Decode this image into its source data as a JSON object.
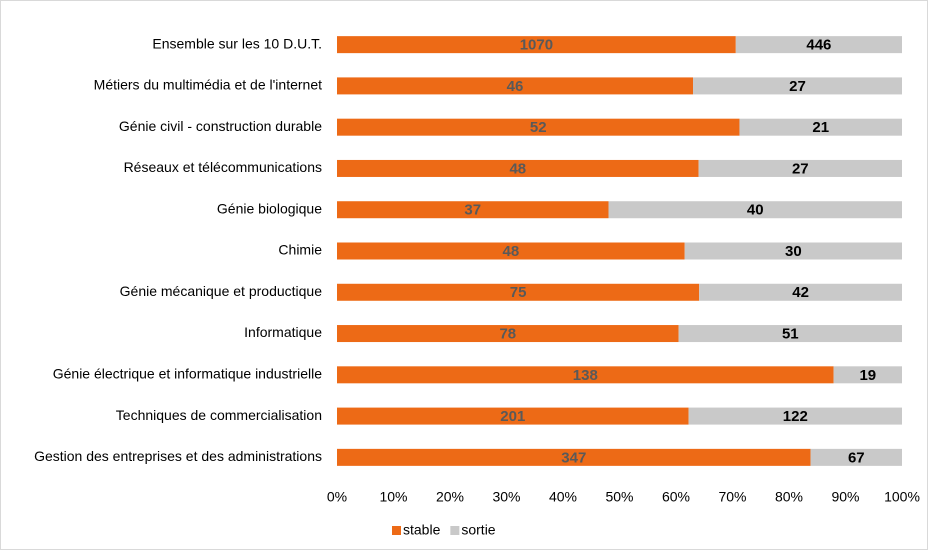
{
  "chart_data": {
    "type": "bar",
    "orientation": "horizontal",
    "stacking": "percent",
    "categories": [
      "Ensemble sur les 10 D.U.T.",
      "Métiers du multimédia et de l'internet",
      "Génie civil - construction durable",
      "Réseaux et télécommunications",
      "Génie biologique",
      "Chimie",
      "Génie mécanique et productique",
      "Informatique",
      "Génie électrique et informatique industrielle",
      "Techniques de commercialisation",
      "Gestion des entreprises et des administrations"
    ],
    "series": [
      {
        "name": "stable",
        "color": "#ed6a16",
        "label_color": "#595959",
        "values": [
          1070,
          46,
          52,
          48,
          37,
          48,
          75,
          78,
          138,
          201,
          347
        ]
      },
      {
        "name": "sortie",
        "color": "#c9c9c9",
        "label_color": "#000000",
        "values": [
          446,
          27,
          21,
          27,
          40,
          30,
          42,
          51,
          19,
          122,
          67
        ]
      }
    ],
    "xlim": [
      0,
      100
    ],
    "xticks": [
      {
        "value": 0,
        "label": "0%"
      },
      {
        "value": 10,
        "label": "10%"
      },
      {
        "value": 20,
        "label": "20%"
      },
      {
        "value": 30,
        "label": "30%"
      },
      {
        "value": 40,
        "label": "40%"
      },
      {
        "value": 50,
        "label": "50%"
      },
      {
        "value": 60,
        "label": "60%"
      },
      {
        "value": 70,
        "label": "70%"
      },
      {
        "value": 80,
        "label": "80%"
      },
      {
        "value": 90,
        "label": "90%"
      },
      {
        "value": 100,
        "label": "100%"
      }
    ],
    "grid": false,
    "legend": "bottom"
  }
}
